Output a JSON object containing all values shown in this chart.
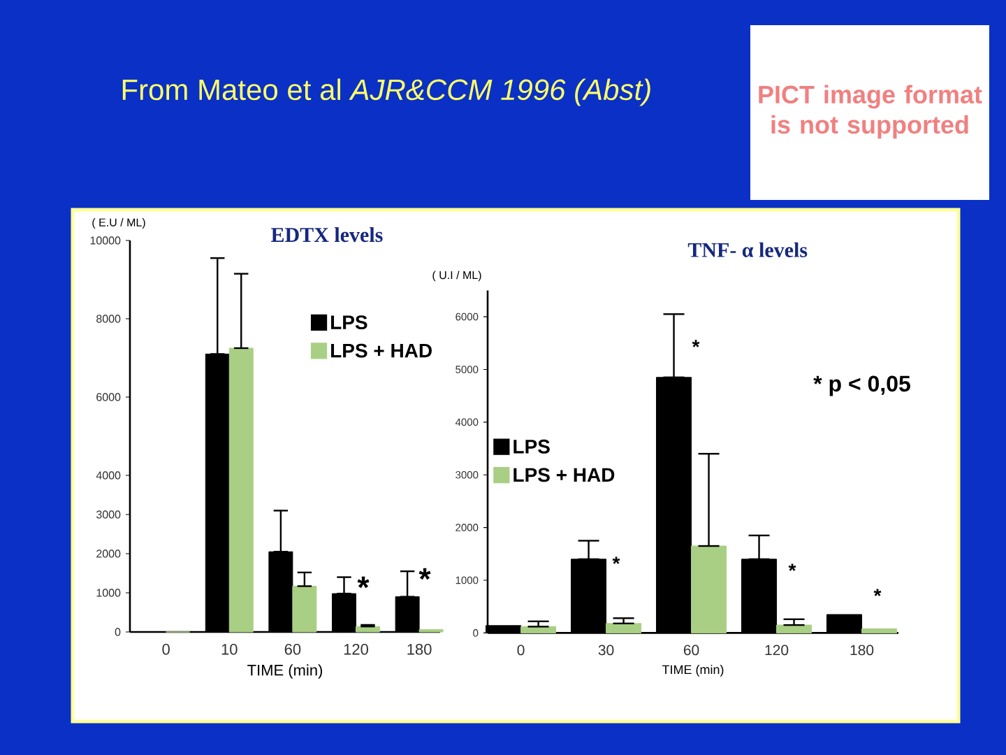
{
  "chart_data": [
    {
      "type": "bar",
      "title": "EDTX levels",
      "xlabel": "TIME (min)",
      "ylabel": "( E.U / ML)",
      "categories": [
        "0",
        "10",
        "60",
        "120",
        "180"
      ],
      "series": [
        {
          "name": "LPS",
          "color": "#000000",
          "values": [
            0,
            7100,
            2050,
            980,
            900
          ],
          "errors": [
            null,
            [
              7100,
              9550
            ],
            [
              2050,
              3100
            ],
            [
              980,
              1400
            ],
            [
              900,
              1550
            ]
          ]
        },
        {
          "name": "LPS + HAD",
          "color": "#a9cf84",
          "values": [
            0,
            7250,
            1170,
            140,
            60
          ],
          "errors": [
            null,
            [
              7250,
              9150
            ],
            [
              1170,
              1520
            ],
            [
              140,
              180
            ],
            null
          ]
        }
      ],
      "ylim": [
        0,
        10000
      ],
      "yticks": [
        0,
        1000,
        2000,
        3000,
        4000,
        6000,
        8000,
        10000
      ],
      "legend": "top right",
      "annotations": [
        "From Mateo et al *AJR&CCM 1996 (Abst)*",
        "*",
        "*"
      ]
    },
    {
      "type": "bar",
      "title": "TNF- α levels",
      "xlabel": "TIME (min)",
      "ylabel": "( U.I / ML)",
      "categories": [
        "0",
        "30",
        "60",
        "120",
        "180"
      ],
      "series": [
        {
          "name": "LPS",
          "color": "#000000",
          "values": [
            140,
            1400,
            4850,
            1400,
            350
          ],
          "errors": [
            null,
            [
              1400,
              1750
            ],
            [
              4850,
              6050
            ],
            [
              1400,
              1850
            ],
            null
          ]
        },
        {
          "name": "LPS + HAD",
          "color": "#a9cf84",
          "values": [
            120,
            180,
            1650,
            150,
            80
          ],
          "errors": [
            [
              120,
              220
            ],
            [
              180,
              280
            ],
            [
              1650,
              3400
            ],
            [
              150,
              260
            ],
            null
          ]
        }
      ],
      "ylim": [
        0,
        6500
      ],
      "yticks": [
        0,
        1000,
        2000,
        3000,
        4000,
        5000,
        6000
      ],
      "legend": "left",
      "annotations": [
        "* p < 0,05",
        "PICT image format is not supported",
        "*",
        "*",
        "*",
        "*"
      ]
    }
  ]
}
